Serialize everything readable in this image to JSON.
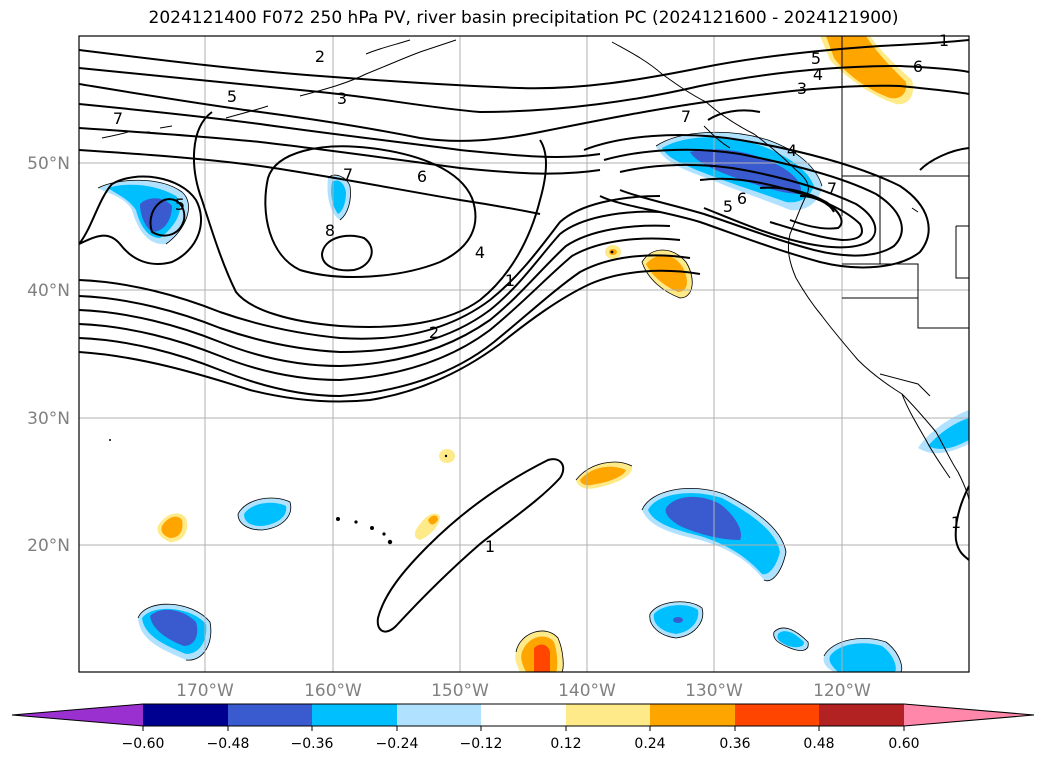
{
  "title": "2024121400 F072 250 hPa PV, river basin precipitation PC (2024121600 - 2024121900)",
  "colors": {
    "neg_extreme": "#9b30d0",
    "neg_060": "#000090",
    "neg_048": "#3a5bd0",
    "neg_036": "#00bfff",
    "neg_024": "#b0e2ff",
    "pos_012": "#ffea8a",
    "pos_024": "#ffa500",
    "pos_036": "#ff4500",
    "pos_048": "#b22222",
    "pos_extreme": "#ff88aa",
    "gridline": "#b0b0b0",
    "axis_label": "#808080"
  },
  "map": {
    "lat_labels": [
      "50°N",
      "40°N",
      "30°N",
      "20°N"
    ],
    "lon_labels": [
      "170°W",
      "160°W",
      "150°W",
      "140°W",
      "130°W",
      "120°W"
    ],
    "contour_labels": [
      "5",
      "2",
      "3",
      "7",
      "6",
      "7",
      "8",
      "5",
      "4",
      "1",
      "2",
      "1",
      "5",
      "4",
      "3",
      "6",
      "7",
      "4",
      "5",
      "6",
      "7",
      "1",
      "1"
    ]
  },
  "colorbar": {
    "ticks": [
      "−0.60",
      "−0.48",
      "−0.36",
      "−0.24",
      "−0.12",
      "0.12",
      "0.24",
      "0.36",
      "0.48",
      "0.60"
    ]
  }
}
